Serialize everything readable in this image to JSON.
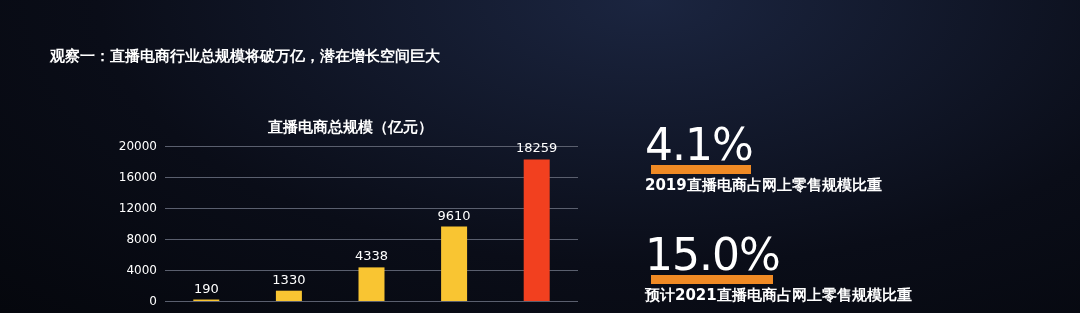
{
  "chart_data": {
    "type": "bar",
    "title": "观察一：直播电商行业总规模将破万亿，潜在增长空间巨大",
    "subtitle": "直播电商总规模（亿元）",
    "categories": [
      null,
      null,
      null,
      null,
      null
    ],
    "values": [
      190,
      1330,
      4338,
      9610,
      18259
    ],
    "colors": [
      "#f9c532",
      "#f9c532",
      "#f9c532",
      "#f9c532",
      "#f2401f"
    ],
    "ylim": [
      0,
      20000
    ],
    "yticks": [
      0,
      4000,
      8000,
      12000,
      16000,
      20000
    ],
    "grid": "y",
    "data_labels": true,
    "annotations": [
      "4.1%",
      "2019直播电商占网上零售规模比重",
      "15.0%",
      "预计2021直播电商占网上零售规模比重"
    ]
  }
}
